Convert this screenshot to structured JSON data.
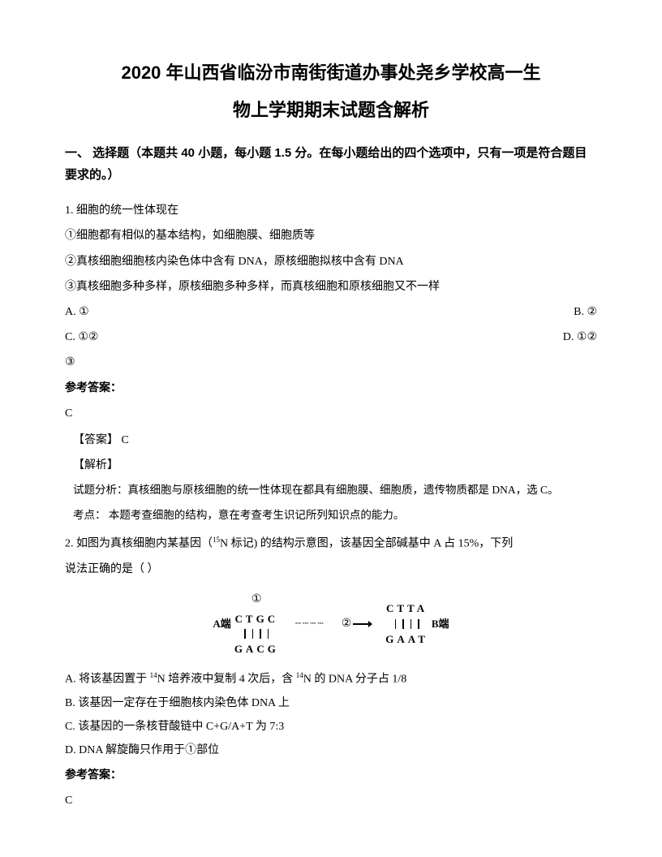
{
  "title_line1": "2020 年山西省临汾市南街街道办事处尧乡学校高一生",
  "title_line2": "物上学期期末试题含解析",
  "section1_header": "一、 选择题（本题共 40 小题，每小题 1.5 分。在每小题给出的四个选项中，只有一项是符合题目要求的。）",
  "q1": {
    "stem": "1. 细胞的统一性体现在",
    "s1": "①细胞都有相似的基本结构，如细胞膜、细胞质等",
    "s2": "②真核细胞细胞核内染色体中含有 DNA，原核细胞拟核中含有 DNA",
    "s3": "③真核细胞多种多样，原核细胞多种多样，而真核细胞和原核细胞又不一样",
    "optA": "A. ①",
    "optB": "B. ②",
    "optC": "C. ①②",
    "optD": "D. ①②",
    "optD2": "③",
    "ans_label": "参考答案：",
    "ans": "C",
    "ans_bracket": "【答案】 C",
    "jx_label": "【解析】",
    "analysis": "试题分析：真核细胞与原核细胞的统一性体现在都具有细胞膜、细胞质，遗传物质都是 DNA，选 C。",
    "kaodian": "考点：  本题考查细胞的结构，意在考查考生识记所列知识点的能力。"
  },
  "q2": {
    "stem1": "2. 如图为真核细胞内某基因（",
    "stem2": "N 标记) 的结构示意图，该基因全部碱基中 A 占 15%，下列",
    "stem3": "说法正确的是（     ）",
    "sup15": "15",
    "diagram": {
      "labelA": "A端",
      "labelB": "B端",
      "circ1": "①",
      "circ2": "②",
      "top1": "CTGC",
      "bot1": "GACG",
      "top2": "CTTA",
      "bot2": "GAAT"
    },
    "optA_pre": "A.  将该基因置于 ",
    "optA_sup": "14",
    "optA_mid": "N 培养液中复制 4 次后，含 ",
    "optA_sup2": "14",
    "optA_post": "N 的 DNA 分子占 1/8",
    "optB": "B.  该基因一定存在于细胞核内染色体 DNA 上",
    "optC": "C.  该基因的一条核苷酸链中 C+G/A+T 为 7:3",
    "optD": "D.  DNA 解旋酶只作用于①部位",
    "ans_label": "参考答案：",
    "ans": "C"
  }
}
